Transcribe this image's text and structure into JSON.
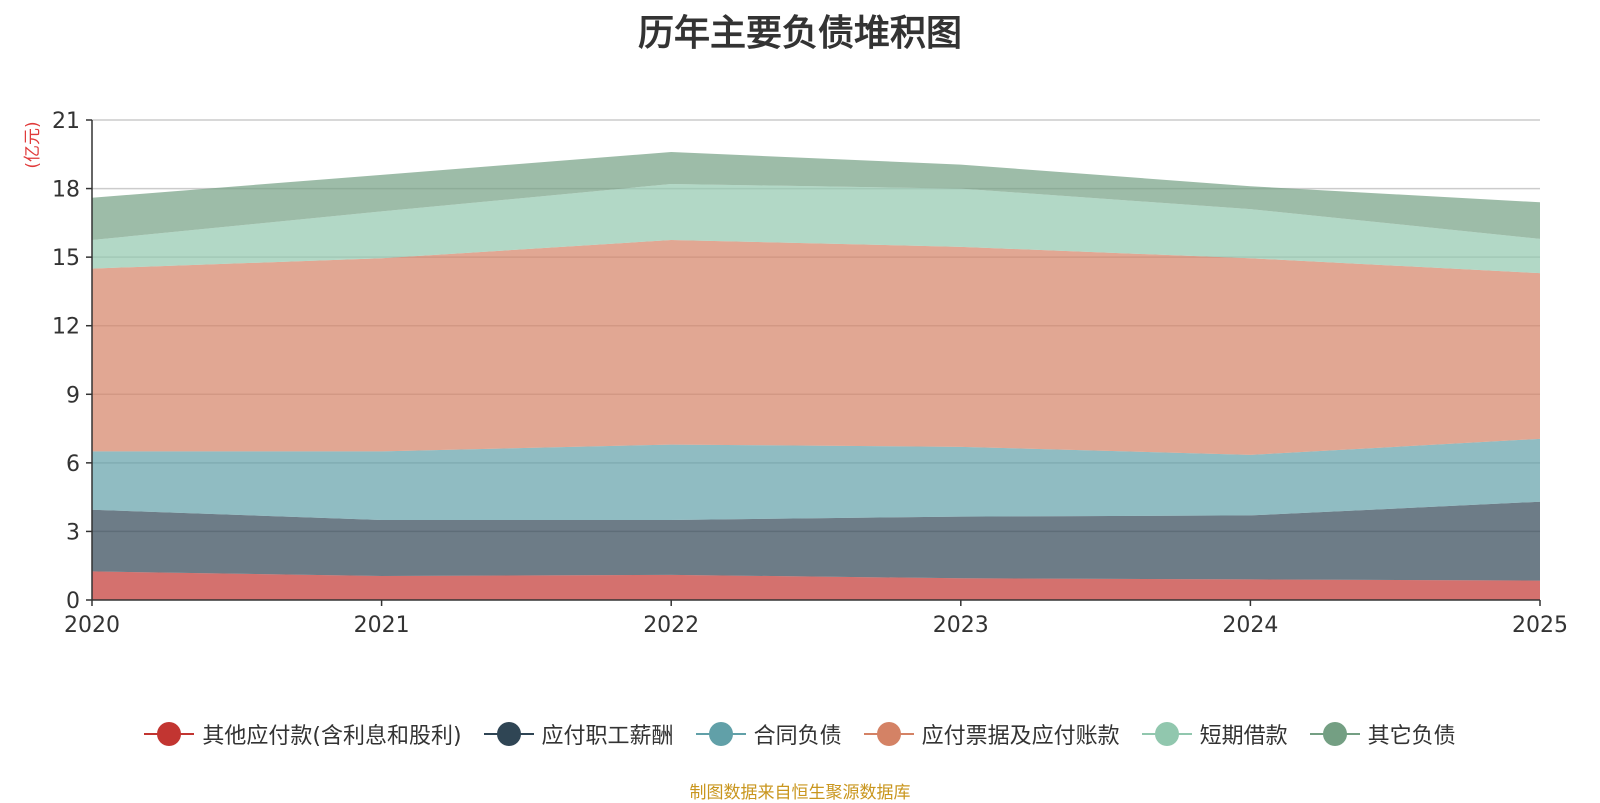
{
  "title": "历年主要负债堆积图",
  "source": "制图数据来自恒生聚源数据库",
  "chart_data": {
    "type": "area",
    "stacked": true,
    "title": "历年主要负债堆积图",
    "ylabel": "(亿元)",
    "x": [
      "2020",
      "2021",
      "2022",
      "2023",
      "2024",
      "2025"
    ],
    "ylim": [
      0,
      21
    ],
    "yticks": [
      0,
      3,
      6,
      9,
      12,
      15,
      18,
      21
    ],
    "grid": true,
    "legend_position": "bottom",
    "series": [
      {
        "name": "其他应付款(含利息和股利)",
        "color": "#c23531",
        "values": [
          1.25,
          1.05,
          1.1,
          0.95,
          0.9,
          0.85
        ]
      },
      {
        "name": "应付职工薪酬",
        "color": "#2f4554",
        "values": [
          2.7,
          2.45,
          2.4,
          2.7,
          2.8,
          3.45
        ]
      },
      {
        "name": "合同负债",
        "color": "#61a0a8",
        "values": [
          2.55,
          3.0,
          3.3,
          3.05,
          2.65,
          2.75
        ]
      },
      {
        "name": "应付票据及应付账款",
        "color": "#d48265",
        "values": [
          8.0,
          8.45,
          8.95,
          8.75,
          8.6,
          7.25
        ]
      },
      {
        "name": "短期借款",
        "color": "#91c7ae",
        "values": [
          1.25,
          2.05,
          2.45,
          2.55,
          2.15,
          1.5
        ]
      },
      {
        "name": "其它负债",
        "color": "#749f83",
        "values": [
          1.85,
          1.6,
          1.4,
          1.05,
          1.0,
          1.6
        ]
      }
    ]
  }
}
